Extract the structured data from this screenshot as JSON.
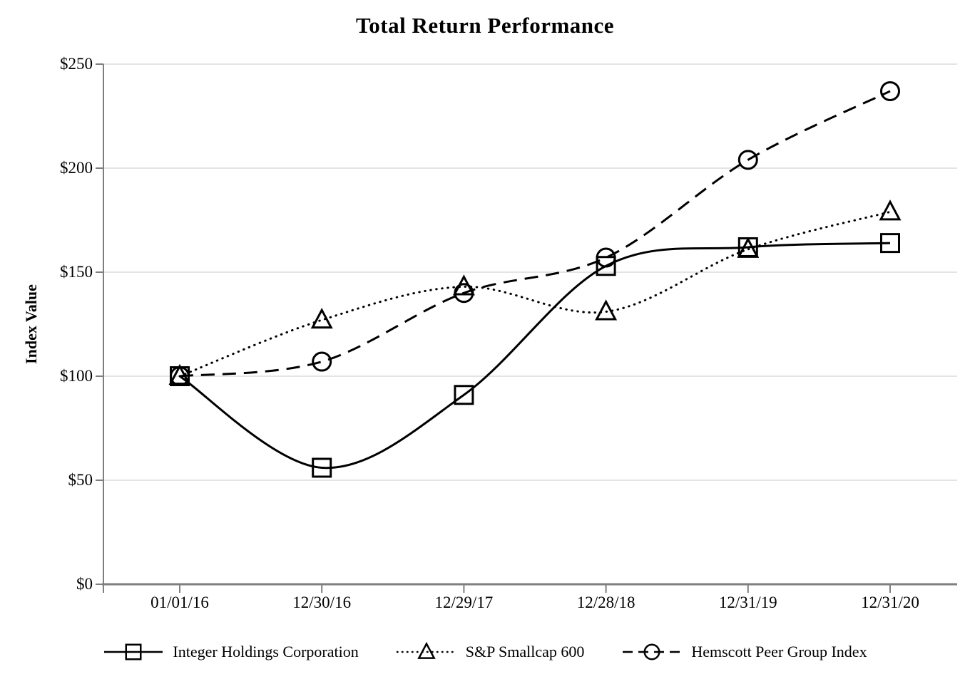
{
  "chart_data": {
    "type": "line",
    "title": "Total Return Performance",
    "ylabel": "Index Value",
    "xlabel": "",
    "categories": [
      "01/01/16",
      "12/30/16",
      "12/29/17",
      "12/28/18",
      "12/31/19",
      "12/31/20"
    ],
    "series": [
      {
        "name": "Integer Holdings Corporation",
        "marker": "square",
        "line_style": "solid",
        "values": [
          100,
          56,
          91,
          153,
          162,
          164
        ]
      },
      {
        "name": "S&P Smallcap 600",
        "marker": "triangle",
        "line_style": "dotted",
        "values": [
          100,
          127,
          143,
          131,
          161,
          179
        ]
      },
      {
        "name": "Hemscott Peer Group Index",
        "marker": "circle",
        "line_style": "dashed",
        "values": [
          100,
          107,
          140,
          157,
          204,
          237
        ]
      }
    ],
    "smoothed_lines": true,
    "ylim": [
      0,
      250
    ],
    "y_tick_step": 50,
    "y_tick_labels": [
      "$0",
      "$50",
      "$100",
      "$150",
      "$200",
      "$250"
    ],
    "grid": "horizontal",
    "legend_position": "bottom",
    "colors": {
      "series": "#000000",
      "gridline": "#dcdcdc",
      "axis": "#7f7f7f",
      "text": "#000000",
      "background": "#ffffff"
    }
  }
}
